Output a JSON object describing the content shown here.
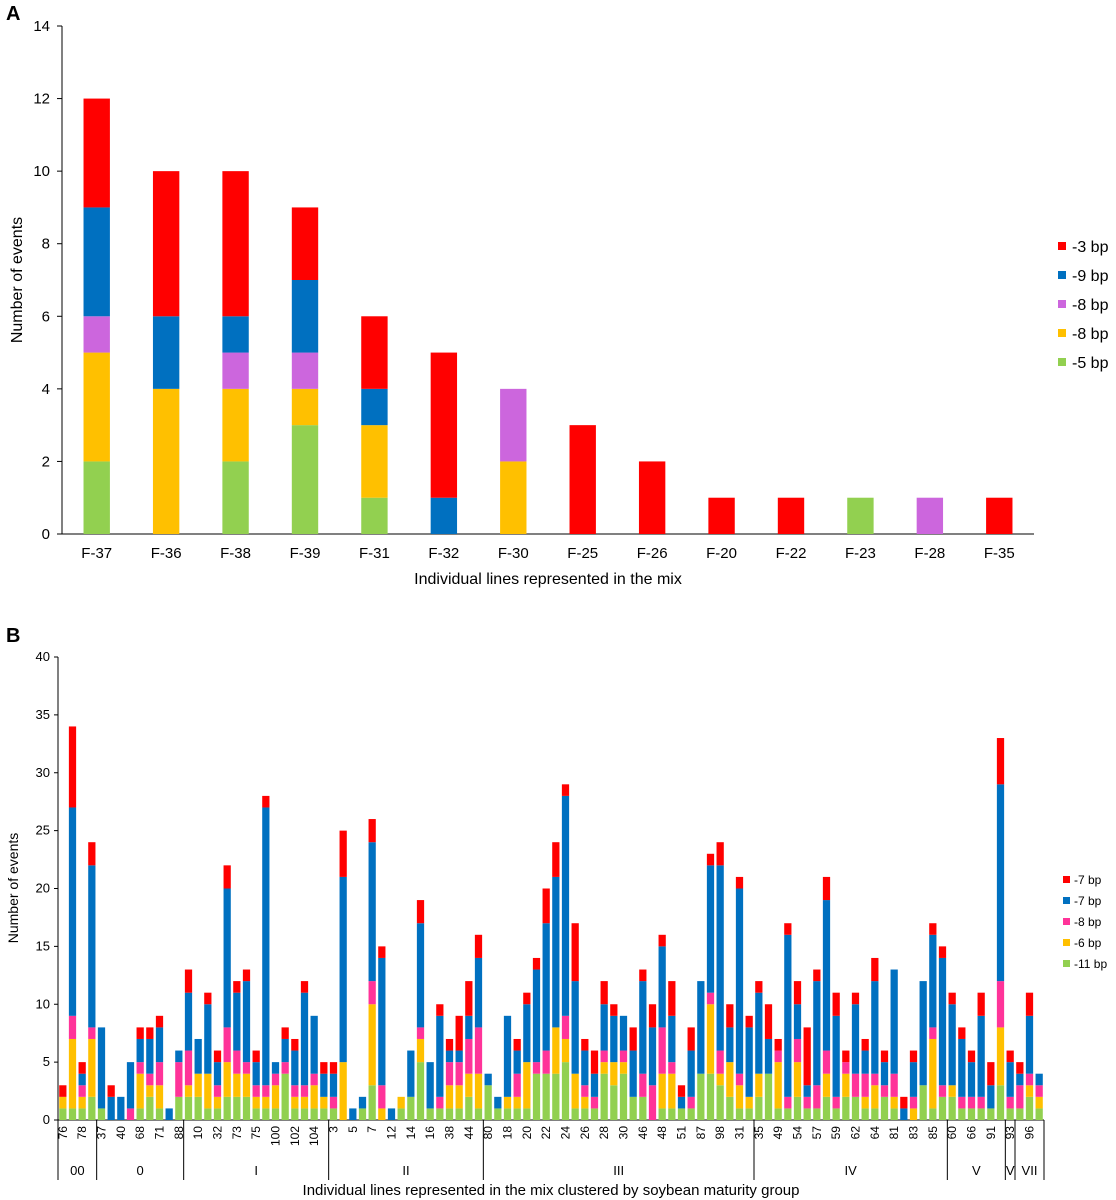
{
  "chart_data": [
    {
      "type": "bar",
      "stacked": true,
      "panel_label": "A",
      "title": "",
      "xlabel": "Individual lines represented in the mix",
      "ylabel": "Number of events",
      "ylim": [
        0,
        14
      ],
      "yticks": [
        0,
        2,
        4,
        6,
        8,
        10,
        12,
        14
      ],
      "grid": false,
      "legend_position": "right",
      "categories": [
        "F-37",
        "F-36",
        "F-38",
        "F-39",
        "F-31",
        "F-32",
        "F-30",
        "F-25",
        "F-26",
        "F-20",
        "F-22",
        "F-23",
        "F-28",
        "F-35"
      ],
      "series": [
        {
          "name": "-5 bp",
          "color": "#92d050",
          "values": [
            2,
            0,
            2,
            3,
            1,
            0,
            0,
            0,
            0,
            0,
            0,
            1,
            0,
            0
          ]
        },
        {
          "name": "-8 bp",
          "color": "#ffc000",
          "values": [
            3,
            4,
            2,
            1,
            2,
            0,
            2,
            0,
            0,
            0,
            0,
            0,
            0,
            0
          ]
        },
        {
          "name": "-8 bp",
          "color": "#cc66dd",
          "values": [
            1,
            0,
            1,
            1,
            0,
            0,
            2,
            0,
            0,
            0,
            0,
            0,
            1,
            0
          ]
        },
        {
          "name": "-9 bp",
          "color": "#0070c0",
          "values": [
            3,
            2,
            1,
            2,
            1,
            1,
            0,
            0,
            0,
            0,
            0,
            0,
            0,
            0
          ]
        },
        {
          "name": "-3 bp",
          "color": "#ff0000",
          "values": [
            3,
            4,
            4,
            2,
            2,
            4,
            0,
            3,
            2,
            1,
            1,
            0,
            0,
            1
          ]
        }
      ]
    },
    {
      "type": "bar",
      "stacked": true,
      "panel_label": "B",
      "title": "",
      "xlabel": "Individual lines represented in the mix clustered by soybean maturity group",
      "ylabel": "Number of events",
      "ylim": [
        0,
        40
      ],
      "yticks": [
        0,
        5,
        10,
        15,
        20,
        25,
        30,
        35,
        40
      ],
      "grid": false,
      "legend_position": "right",
      "categories": [
        "76",
        "",
        "78",
        "",
        "37",
        "",
        "40",
        "",
        "68",
        "",
        "71",
        "",
        "88",
        "",
        "10",
        "",
        "32",
        "",
        "73",
        "",
        "75",
        "",
        "100",
        "",
        "102",
        "",
        "104",
        "",
        "3",
        "",
        "5",
        "",
        "7",
        "",
        "12",
        "",
        "14",
        "",
        "16",
        "",
        "38",
        "",
        "44",
        "",
        "80",
        "",
        "18",
        "",
        "20",
        "",
        "22",
        "",
        "24",
        "",
        "26",
        "",
        "28",
        "",
        "30",
        "",
        "46",
        "",
        "48",
        "",
        "51",
        "",
        "87",
        "",
        "98",
        "",
        "31",
        "",
        "35",
        "",
        "49",
        "",
        "54",
        "",
        "57",
        "",
        "59",
        "",
        "62",
        "",
        "64",
        "",
        "81",
        "",
        "83",
        "",
        "85",
        "",
        "60",
        "",
        "66",
        "",
        "91",
        "",
        "93",
        "",
        "96",
        ""
      ],
      "groups": [
        {
          "label": "00",
          "start": 0,
          "end": 4
        },
        {
          "label": "0",
          "start": 4,
          "end": 13
        },
        {
          "label": "I",
          "start": 13,
          "end": 28
        },
        {
          "label": "II",
          "start": 28,
          "end": 44
        },
        {
          "label": "III",
          "start": 44,
          "end": 72
        },
        {
          "label": "IV",
          "start": 72,
          "end": 92
        },
        {
          "label": "V",
          "start": 92,
          "end": 98
        },
        {
          "label": "V",
          "start": 98,
          "end": 99
        },
        {
          "label": "VII",
          "start": 99,
          "end": 102
        }
      ],
      "series": [
        {
          "name": "-11 bp",
          "color": "#92d050",
          "values": [
            1,
            1,
            1,
            2,
            1,
            0,
            0,
            0,
            1,
            2,
            1,
            0,
            2,
            2,
            2,
            1,
            1,
            2,
            2,
            2,
            1,
            1,
            1,
            4,
            1,
            1,
            1,
            1,
            1,
            0,
            0,
            1,
            3,
            0,
            0,
            1,
            2,
            5,
            1,
            1,
            1,
            1,
            2,
            1,
            3,
            1,
            1,
            1,
            1,
            4,
            4,
            4,
            5,
            1,
            1,
            1,
            4,
            3,
            4,
            2,
            2,
            0,
            1,
            1,
            1,
            1,
            4,
            4,
            3,
            2,
            1,
            1,
            2,
            4,
            1,
            1,
            2,
            1,
            1,
            2,
            1,
            2,
            2,
            1,
            1,
            2,
            1,
            0,
            0,
            3,
            1,
            2,
            2,
            1,
            1,
            1,
            1,
            3,
            1,
            1,
            2,
            1
          ]
        },
        {
          "name": "-6 bp",
          "color": "#ffc000",
          "values": [
            1,
            6,
            1,
            5,
            0,
            0,
            0,
            0,
            3,
            1,
            2,
            0,
            0,
            1,
            2,
            3,
            1,
            3,
            2,
            2,
            1,
            1,
            2,
            0,
            1,
            1,
            2,
            1,
            0,
            5,
            0,
            0,
            7,
            1,
            0,
            1,
            0,
            2,
            0,
            0,
            2,
            2,
            2,
            3,
            0,
            0,
            1,
            1,
            4,
            0,
            0,
            4,
            2,
            3,
            1,
            0,
            1,
            2,
            1,
            0,
            0,
            0,
            3,
            3,
            0,
            0,
            0,
            6,
            1,
            3,
            2,
            1,
            2,
            0,
            4,
            0,
            3,
            0,
            0,
            2,
            0,
            2,
            0,
            1,
            2,
            0,
            1,
            0,
            1,
            0,
            6,
            0,
            1,
            0,
            0,
            0,
            0,
            5,
            0,
            0,
            1,
            1
          ]
        },
        {
          "name": "-8 bp",
          "color": "#ff3399",
          "values": [
            0,
            2,
            1,
            1,
            0,
            0,
            0,
            1,
            1,
            1,
            2,
            0,
            3,
            3,
            0,
            0,
            1,
            3,
            2,
            1,
            1,
            1,
            1,
            1,
            1,
            1,
            1,
            0,
            1,
            0,
            0,
            0,
            2,
            2,
            0,
            0,
            0,
            1,
            0,
            1,
            2,
            2,
            3,
            4,
            0,
            0,
            0,
            2,
            0,
            1,
            2,
            0,
            2,
            0,
            1,
            1,
            1,
            0,
            1,
            0,
            2,
            3,
            4,
            1,
            0,
            1,
            0,
            1,
            2,
            0,
            1,
            0,
            0,
            0,
            1,
            1,
            2,
            1,
            2,
            2,
            1,
            1,
            2,
            2,
            1,
            1,
            2,
            0,
            1,
            0,
            1,
            1,
            0,
            1,
            1,
            1,
            0,
            4,
            1,
            2,
            1,
            1
          ]
        },
        {
          "name": "-7 bp",
          "color": "#0070c0",
          "values": [
            0,
            18,
            1,
            14,
            7,
            2,
            2,
            4,
            2,
            3,
            3,
            1,
            1,
            5,
            3,
            6,
            2,
            12,
            5,
            7,
            2,
            24,
            1,
            2,
            3,
            8,
            5,
            2,
            2,
            16,
            1,
            1,
            12,
            11,
            1,
            0,
            4,
            9,
            4,
            7,
            1,
            1,
            2,
            6,
            1,
            1,
            7,
            2,
            5,
            8,
            11,
            13,
            19,
            8,
            3,
            2,
            4,
            4,
            3,
            4,
            8,
            5,
            7,
            4,
            1,
            4,
            8,
            11,
            16,
            3,
            16,
            6,
            7,
            3,
            0,
            14,
            3,
            1,
            9,
            13,
            7,
            0,
            6,
            2,
            8,
            2,
            9,
            1,
            3,
            9,
            8,
            11,
            7,
            5,
            3,
            7,
            2,
            17,
            3,
            1,
            5,
            1
          ]
        },
        {
          "name": "-7 bp",
          "color": "#ff0000",
          "values": [
            1,
            7,
            1,
            2,
            0,
            1,
            0,
            0,
            1,
            1,
            1,
            0,
            0,
            2,
            0,
            1,
            1,
            2,
            1,
            1,
            1,
            1,
            0,
            1,
            1,
            1,
            0,
            1,
            1,
            4,
            0,
            0,
            2,
            1,
            0,
            0,
            0,
            2,
            0,
            1,
            1,
            3,
            3,
            2,
            0,
            0,
            0,
            1,
            1,
            1,
            3,
            3,
            1,
            5,
            1,
            2,
            2,
            1,
            0,
            2,
            1,
            2,
            1,
            3,
            1,
            2,
            0,
            1,
            2,
            2,
            1,
            1,
            1,
            3,
            1,
            1,
            2,
            5,
            1,
            2,
            2,
            1,
            1,
            1,
            2,
            1,
            0,
            1,
            1,
            0,
            1,
            1,
            1,
            1,
            1,
            2,
            2,
            4,
            1,
            1,
            2,
            0
          ]
        }
      ]
    }
  ]
}
